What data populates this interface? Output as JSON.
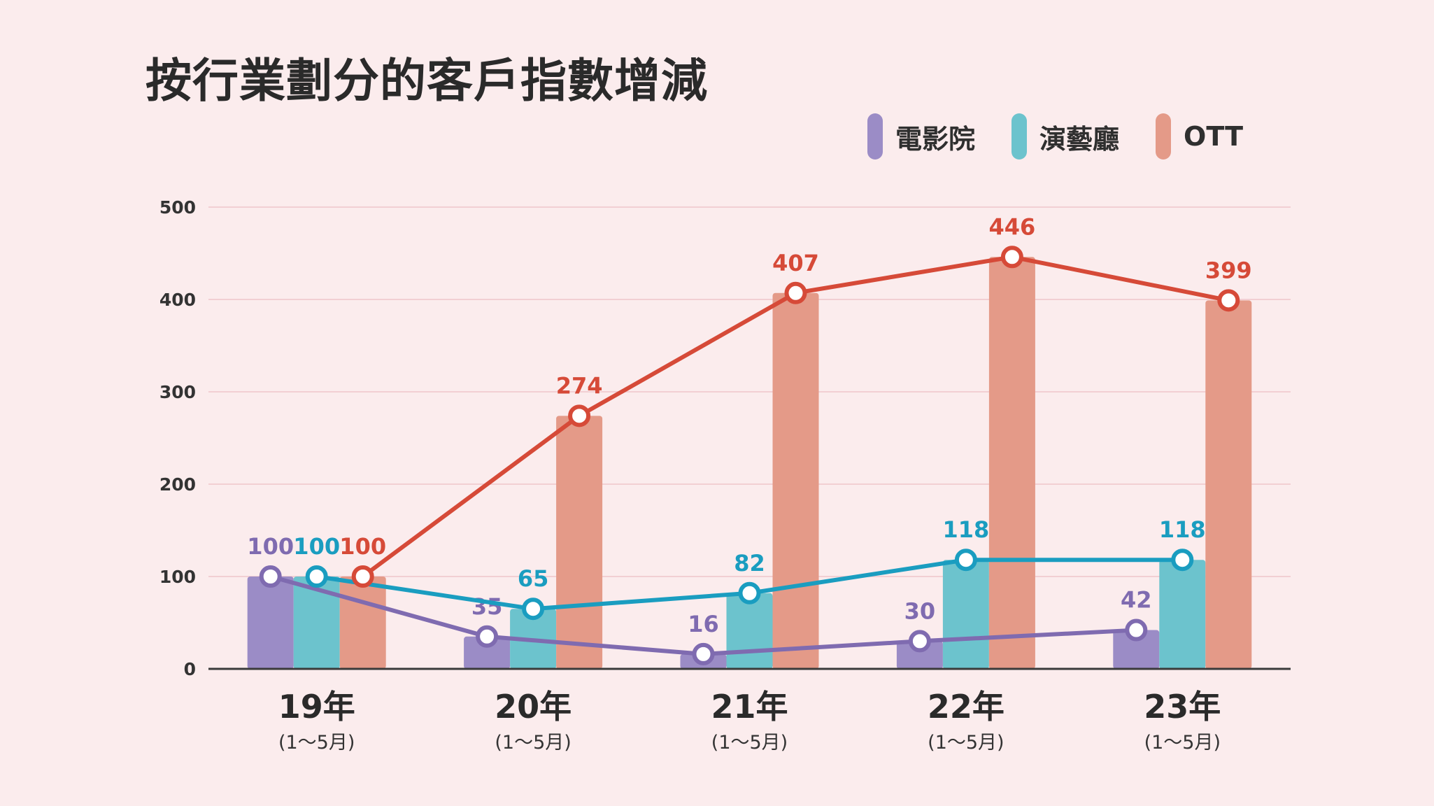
{
  "chart_data": {
    "type": "bar",
    "title": "按行業劃分的客戶指數增減",
    "categories": [
      "19年",
      "20年",
      "21年",
      "22年",
      "23年"
    ],
    "category_sublabels": [
      "(1〜5月)",
      "(1〜5月)",
      "(1〜5月)",
      "(1〜5月)",
      "(1〜5月)"
    ],
    "series": [
      {
        "name": "電影院",
        "values": [
          100,
          35,
          16,
          30,
          42
        ],
        "color": "#7f6bb0",
        "bar_color": "#9b8cc6"
      },
      {
        "name": "演藝廳",
        "values": [
          100,
          65,
          82,
          118,
          118
        ],
        "color": "#1a9dc0",
        "bar_color": "#6cc3cd"
      },
      {
        "name": "OTT",
        "values": [
          100,
          274,
          407,
          446,
          399
        ],
        "color": "#d64a38",
        "bar_color": "#e49a88"
      }
    ],
    "overlay": "lines connecting each series' values with circular markers",
    "ylim": [
      0,
      500
    ],
    "yticks": [
      0,
      100,
      200,
      300,
      400,
      500
    ],
    "grid": true,
    "legend_position": "top-right",
    "xlabel": "",
    "ylabel": ""
  }
}
